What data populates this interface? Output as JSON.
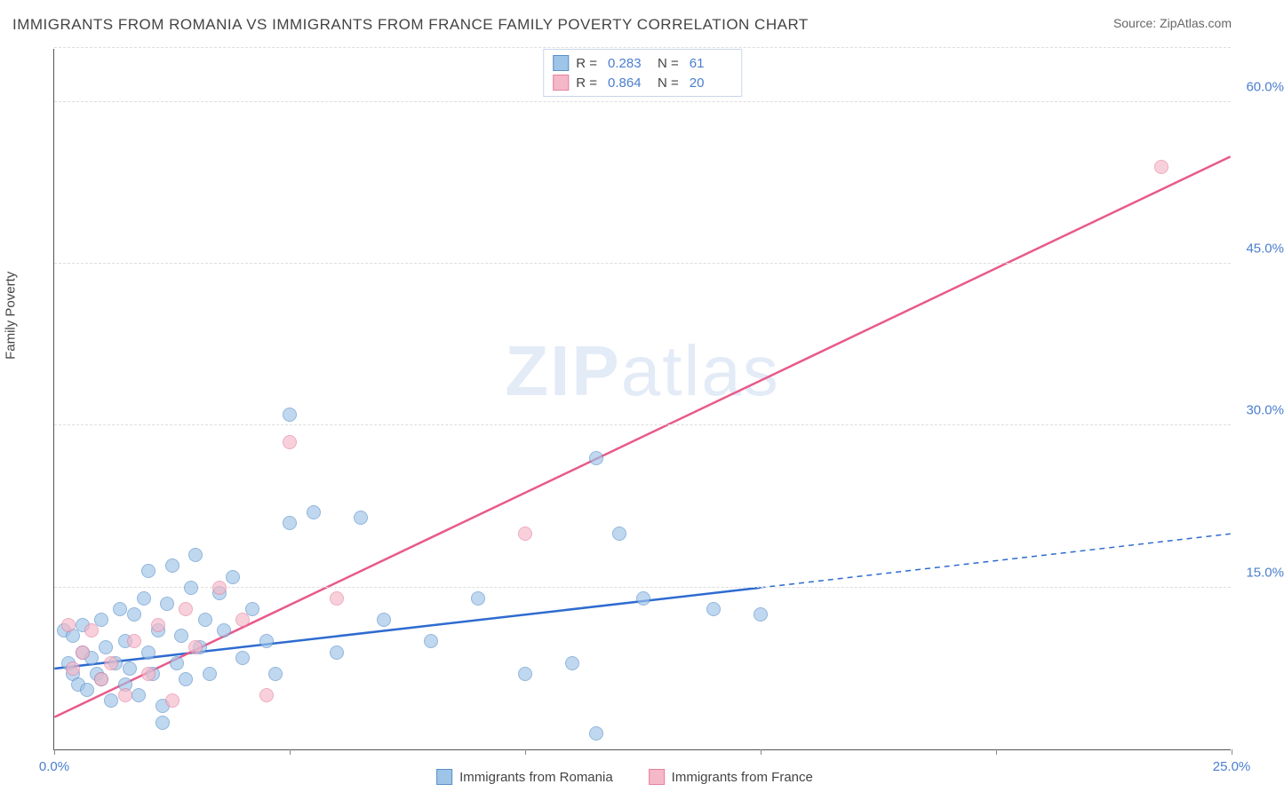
{
  "title": "IMMIGRANTS FROM ROMANIA VS IMMIGRANTS FROM FRANCE FAMILY POVERTY CORRELATION CHART",
  "source": "Source: ZipAtlas.com",
  "ylabel": "Family Poverty",
  "watermark_a": "ZIP",
  "watermark_b": "atlas",
  "chart": {
    "type": "scatter",
    "xlim": [
      0,
      25
    ],
    "ylim": [
      0,
      65
    ],
    "yticks": [
      15,
      30,
      45,
      60
    ],
    "ytick_labels": [
      "15.0%",
      "30.0%",
      "45.0%",
      "60.0%"
    ],
    "ytick_color": "#4a7ecf",
    "xticks": [
      0,
      5,
      10,
      15,
      20,
      25
    ],
    "xtick_labels": {
      "0": "0.0%",
      "25": "25.0%"
    },
    "xtick_color": "#4a7ecf",
    "grid_color": "#dddddd",
    "axis_color": "#555555",
    "background_color": "#ffffff",
    "marker_radius": 8,
    "series": [
      {
        "name": "Immigrants from Romania",
        "fill": "#9ec4e8",
        "stroke": "#5a8fc9",
        "opacity": 0.65,
        "r_value": "0.283",
        "n_value": "61",
        "trend": {
          "x1": 0,
          "y1": 7.5,
          "x2": 25,
          "y2": 20.0,
          "solid_until_x": 15,
          "stroke": "#2e6bd0",
          "width": 2.5
        },
        "points": [
          [
            0.2,
            11
          ],
          [
            0.3,
            8
          ],
          [
            0.4,
            7
          ],
          [
            0.4,
            10.5
          ],
          [
            0.5,
            6
          ],
          [
            0.6,
            9
          ],
          [
            0.6,
            11.5
          ],
          [
            0.7,
            5.5
          ],
          [
            0.8,
            8.5
          ],
          [
            0.9,
            7
          ],
          [
            1.0,
            12
          ],
          [
            1.0,
            6.5
          ],
          [
            1.1,
            9.5
          ],
          [
            1.2,
            4.5
          ],
          [
            1.3,
            8
          ],
          [
            1.4,
            13
          ],
          [
            1.5,
            6
          ],
          [
            1.5,
            10
          ],
          [
            1.6,
            7.5
          ],
          [
            1.7,
            12.5
          ],
          [
            1.8,
            5
          ],
          [
            1.9,
            14
          ],
          [
            2.0,
            9
          ],
          [
            2.0,
            16.5
          ],
          [
            2.1,
            7
          ],
          [
            2.2,
            11
          ],
          [
            2.3,
            4
          ],
          [
            2.4,
            13.5
          ],
          [
            2.5,
            17
          ],
          [
            2.6,
            8
          ],
          [
            2.7,
            10.5
          ],
          [
            2.8,
            6.5
          ],
          [
            2.9,
            15
          ],
          [
            3.0,
            18
          ],
          [
            3.1,
            9.5
          ],
          [
            3.2,
            12
          ],
          [
            3.3,
            7
          ],
          [
            3.5,
            14.5
          ],
          [
            3.6,
            11
          ],
          [
            3.8,
            16
          ],
          [
            4.0,
            8.5
          ],
          [
            4.2,
            13
          ],
          [
            4.5,
            10
          ],
          [
            4.7,
            7
          ],
          [
            5.0,
            21
          ],
          [
            5.0,
            31
          ],
          [
            5.5,
            22
          ],
          [
            6.0,
            9
          ],
          [
            6.5,
            21.5
          ],
          [
            7.0,
            12
          ],
          [
            8.0,
            10
          ],
          [
            9.0,
            14
          ],
          [
            10.0,
            7
          ],
          [
            11.0,
            8
          ],
          [
            11.5,
            1.5
          ],
          [
            11.5,
            27
          ],
          [
            12.0,
            20
          ],
          [
            14.0,
            13
          ],
          [
            15.0,
            12.5
          ],
          [
            12.5,
            14
          ],
          [
            2.3,
            2.5
          ]
        ]
      },
      {
        "name": "Immigrants from France",
        "fill": "#f5b8c8",
        "stroke": "#e6809e",
        "opacity": 0.65,
        "r_value": "0.864",
        "n_value": "20",
        "trend": {
          "x1": 0,
          "y1": 3.0,
          "x2": 25,
          "y2": 55.0,
          "solid_until_x": 25,
          "stroke": "#e85a8a",
          "width": 2.5
        },
        "points": [
          [
            0.3,
            11.5
          ],
          [
            0.4,
            7.5
          ],
          [
            0.6,
            9
          ],
          [
            0.8,
            11
          ],
          [
            1.0,
            6.5
          ],
          [
            1.2,
            8
          ],
          [
            1.5,
            5
          ],
          [
            1.7,
            10
          ],
          [
            2.0,
            7
          ],
          [
            2.2,
            11.5
          ],
          [
            2.5,
            4.5
          ],
          [
            2.8,
            13
          ],
          [
            3.0,
            9.5
          ],
          [
            3.5,
            15
          ],
          [
            4.0,
            12
          ],
          [
            4.5,
            5
          ],
          [
            5.0,
            28.5
          ],
          [
            6.0,
            14
          ],
          [
            10.0,
            20
          ],
          [
            23.5,
            54
          ]
        ]
      }
    ]
  }
}
